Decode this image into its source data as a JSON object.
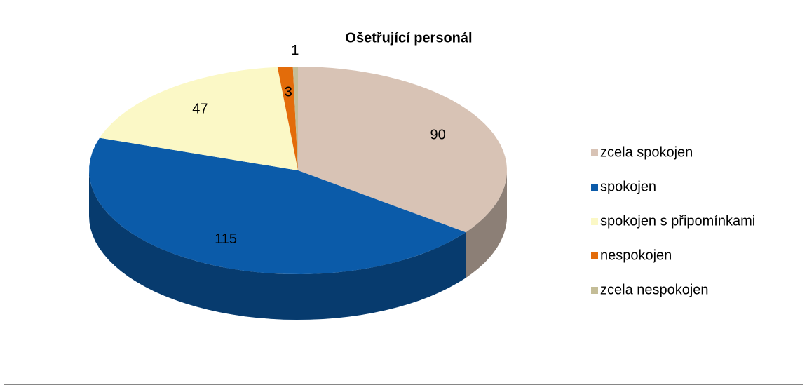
{
  "chart_data": {
    "type": "pie3d",
    "title": "Ošetřující personál",
    "categories": [
      "zcela spokojen",
      "spokojen",
      "spokojen s připomínkami",
      "nespokojen",
      "zcela nespokojen"
    ],
    "values": [
      90,
      115,
      47,
      3,
      1
    ],
    "colors": [
      "#d8c3b5",
      "#0b5ba9",
      "#fbf8c6",
      "#e36c0a",
      "#c4bd97"
    ],
    "legend": "right"
  }
}
